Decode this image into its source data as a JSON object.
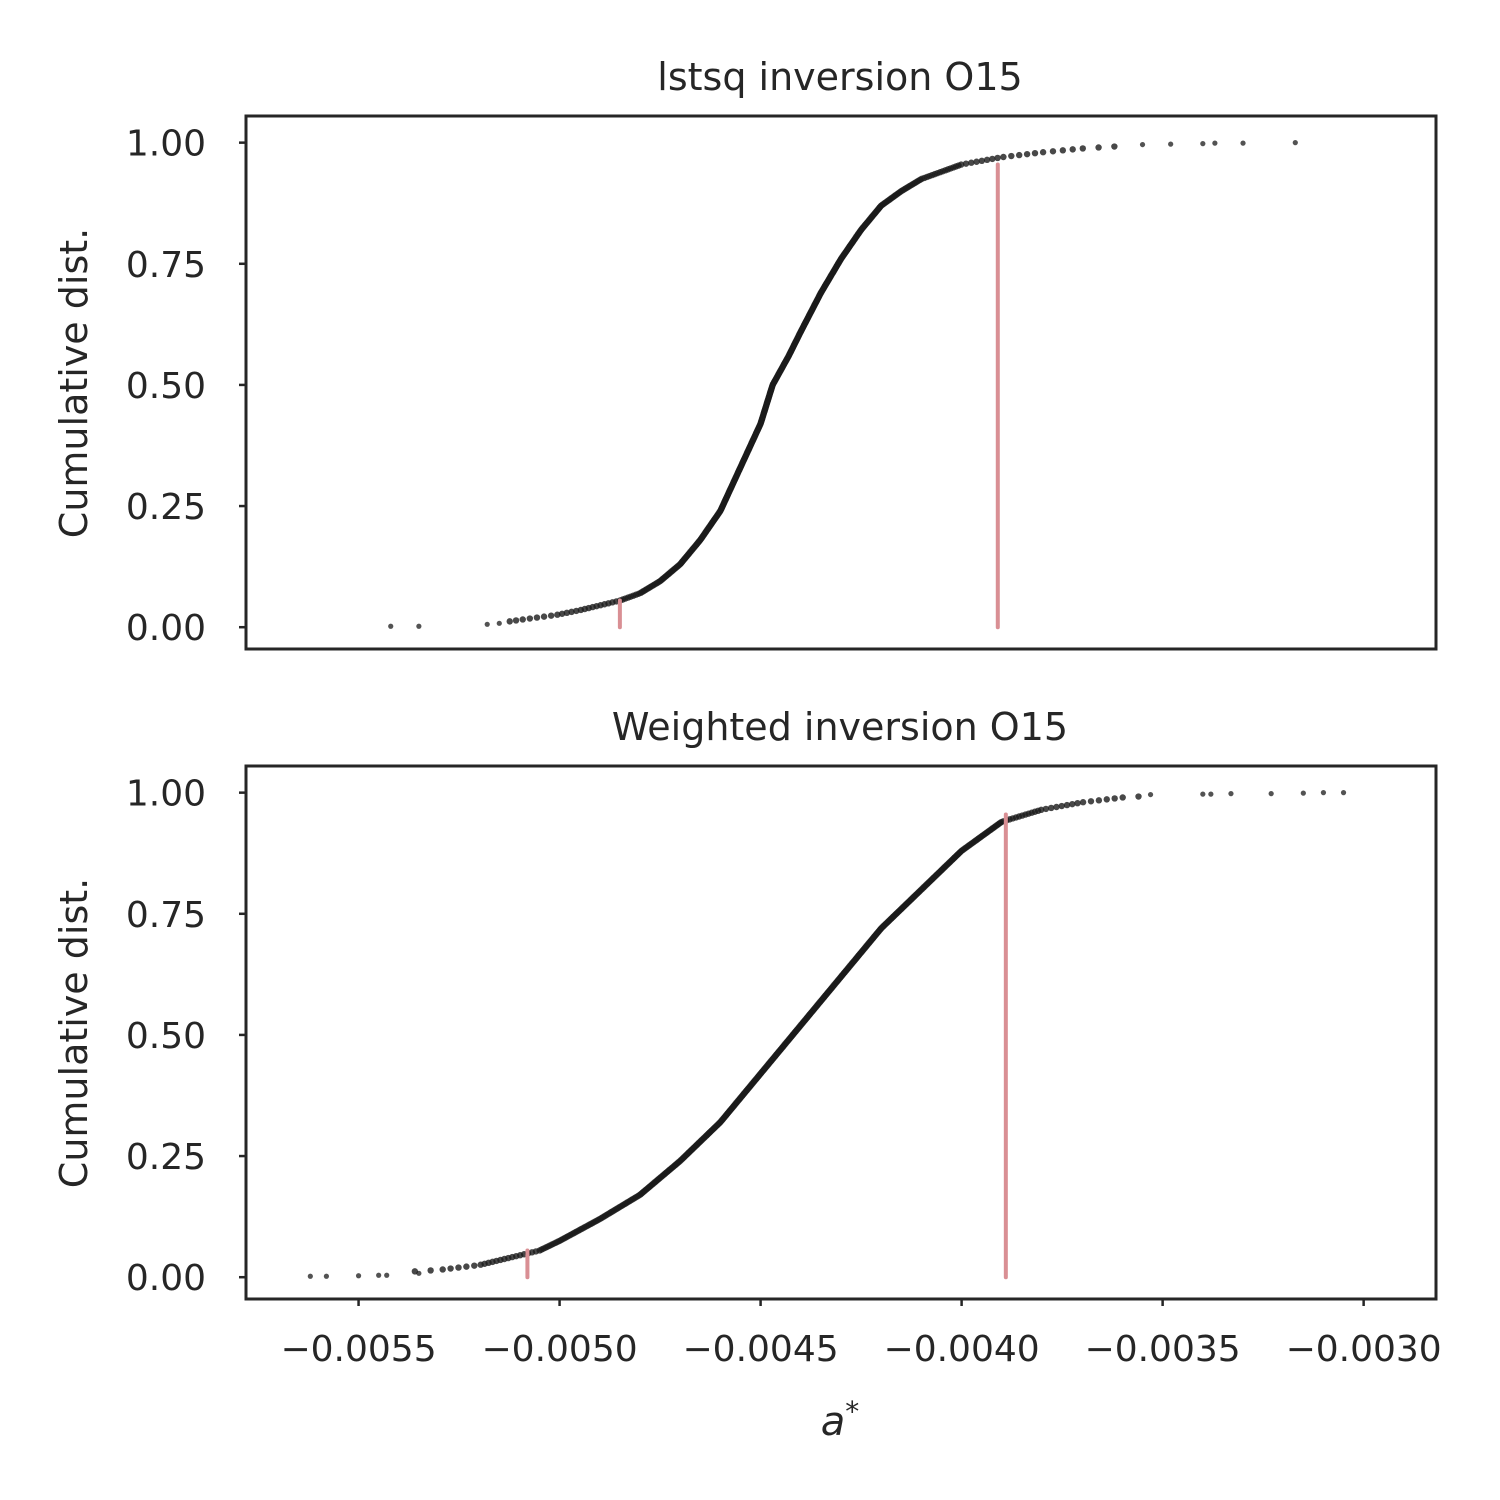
{
  "chart_data": [
    {
      "type": "scatter",
      "title": "lstsq inversion O15",
      "ylabel": "Cumulative dist.",
      "xlabel": "",
      "xlim": [
        -0.00578,
        -0.00282
      ],
      "ylim": [
        -0.045,
        1.055
      ],
      "xticks_visible": false,
      "yticks": [
        {
          "v": 0,
          "label": "0.00"
        },
        {
          "v": 0.25,
          "label": "0.25"
        },
        {
          "v": 0.5,
          "label": "0.50"
        },
        {
          "v": 0.75,
          "label": "0.75"
        },
        {
          "v": 1,
          "label": "1.00"
        }
      ],
      "grid": false,
      "point_color": "#1a1a1a",
      "marker_color": "#d98f94",
      "cdf_knots": [
        [
          -0.00542,
          0.0
        ],
        [
          -0.00535,
          0.002
        ],
        [
          -0.00518,
          0.005
        ],
        [
          -0.0051,
          0.015
        ],
        [
          -0.00501,
          0.025
        ],
        [
          -0.00495,
          0.035
        ],
        [
          -0.0049,
          0.045
        ],
        [
          -0.00485,
          0.055
        ],
        [
          -0.0048,
          0.07
        ],
        [
          -0.00475,
          0.095
        ],
        [
          -0.0047,
          0.13
        ],
        [
          -0.00465,
          0.18
        ],
        [
          -0.0046,
          0.24
        ],
        [
          -0.00455,
          0.33
        ],
        [
          -0.0045,
          0.42
        ],
        [
          -0.00447,
          0.5
        ],
        [
          -0.00443,
          0.56
        ],
        [
          -0.0044,
          0.61
        ],
        [
          -0.00435,
          0.69
        ],
        [
          -0.0043,
          0.76
        ],
        [
          -0.00425,
          0.82
        ],
        [
          -0.0042,
          0.87
        ],
        [
          -0.00415,
          0.9
        ],
        [
          -0.0041,
          0.925
        ],
        [
          -0.00405,
          0.94
        ],
        [
          -0.004,
          0.955
        ],
        [
          -0.0039,
          0.97
        ],
        [
          -0.0038,
          0.98
        ],
        [
          -0.0037,
          0.988
        ],
        [
          -0.0036,
          0.993
        ],
        [
          -0.0035,
          0.997
        ],
        [
          -0.0034,
          0.999
        ],
        [
          -0.0032,
          1.0
        ]
      ],
      "outliers_low": [
        [
          -0.00542,
          0.002
        ],
        [
          -0.00535,
          0.002
        ],
        [
          -0.00518,
          0.006
        ],
        [
          -0.00515,
          0.008
        ]
      ],
      "outliers_high": [
        [
          -0.00355,
          0.996
        ],
        [
          -0.00348,
          0.997
        ],
        [
          -0.0034,
          0.998
        ],
        [
          -0.00337,
          0.999
        ],
        [
          -0.0033,
          0.999
        ],
        [
          -0.00317,
          1.0
        ]
      ],
      "markers": [
        {
          "x": -0.00485,
          "y_top": 0.055
        },
        {
          "x": -0.00391,
          "y_top": 0.955
        }
      ]
    },
    {
      "type": "scatter",
      "title": "Weighted inversion O15",
      "ylabel": "Cumulative dist.",
      "xlabel": "a*",
      "xlim": [
        -0.00578,
        -0.00282
      ],
      "ylim": [
        -0.045,
        1.055
      ],
      "xticks_visible": true,
      "xticks": [
        {
          "v": -0.0055,
          "label": "−0.0055"
        },
        {
          "v": -0.005,
          "label": "−0.0050"
        },
        {
          "v": -0.0045,
          "label": "−0.0045"
        },
        {
          "v": -0.004,
          "label": "−0.0040"
        },
        {
          "v": -0.0035,
          "label": "−0.0035"
        },
        {
          "v": -0.003,
          "label": "−0.0030"
        }
      ],
      "yticks": [
        {
          "v": 0,
          "label": "0.00"
        },
        {
          "v": 0.25,
          "label": "0.25"
        },
        {
          "v": 0.5,
          "label": "0.50"
        },
        {
          "v": 0.75,
          "label": "0.75"
        },
        {
          "v": 1,
          "label": "1.00"
        }
      ],
      "grid": false,
      "point_color": "#1a1a1a",
      "marker_color": "#d98f94",
      "cdf_knots": [
        [
          -0.00562,
          0.0
        ],
        [
          -0.00555,
          0.003
        ],
        [
          -0.00545,
          0.008
        ],
        [
          -0.0054,
          0.01
        ],
        [
          -0.0053,
          0.015
        ],
        [
          -0.0052,
          0.025
        ],
        [
          -0.0051,
          0.045
        ],
        [
          -0.00505,
          0.055
        ],
        [
          -0.005,
          0.075
        ],
        [
          -0.0049,
          0.12
        ],
        [
          -0.0048,
          0.17
        ],
        [
          -0.0047,
          0.24
        ],
        [
          -0.0046,
          0.32
        ],
        [
          -0.0045,
          0.42
        ],
        [
          -0.0044,
          0.52
        ],
        [
          -0.0043,
          0.62
        ],
        [
          -0.0042,
          0.72
        ],
        [
          -0.0041,
          0.8
        ],
        [
          -0.004,
          0.88
        ],
        [
          -0.0039,
          0.94
        ],
        [
          -0.0038,
          0.965
        ],
        [
          -0.0037,
          0.98
        ],
        [
          -0.0036,
          0.99
        ],
        [
          -0.0035,
          0.995
        ],
        [
          -0.0034,
          0.998
        ],
        [
          -0.0031,
          1.0
        ]
      ],
      "outliers_low": [
        [
          -0.00562,
          0.002
        ],
        [
          -0.00558,
          0.002
        ],
        [
          -0.0055,
          0.003
        ],
        [
          -0.00545,
          0.004
        ],
        [
          -0.00543,
          0.004
        ],
        [
          -0.00535,
          0.008
        ]
      ],
      "outliers_high": [
        [
          -0.00353,
          0.996
        ],
        [
          -0.0034,
          0.997
        ],
        [
          -0.00338,
          0.997
        ],
        [
          -0.00333,
          0.998
        ],
        [
          -0.00323,
          0.998
        ],
        [
          -0.00315,
          0.999
        ],
        [
          -0.0031,
          1.0
        ],
        [
          -0.00305,
          1.0
        ]
      ],
      "markers": [
        {
          "x": -0.00508,
          "y_top": 0.055
        },
        {
          "x": -0.00389,
          "y_top": 0.955
        }
      ]
    }
  ]
}
